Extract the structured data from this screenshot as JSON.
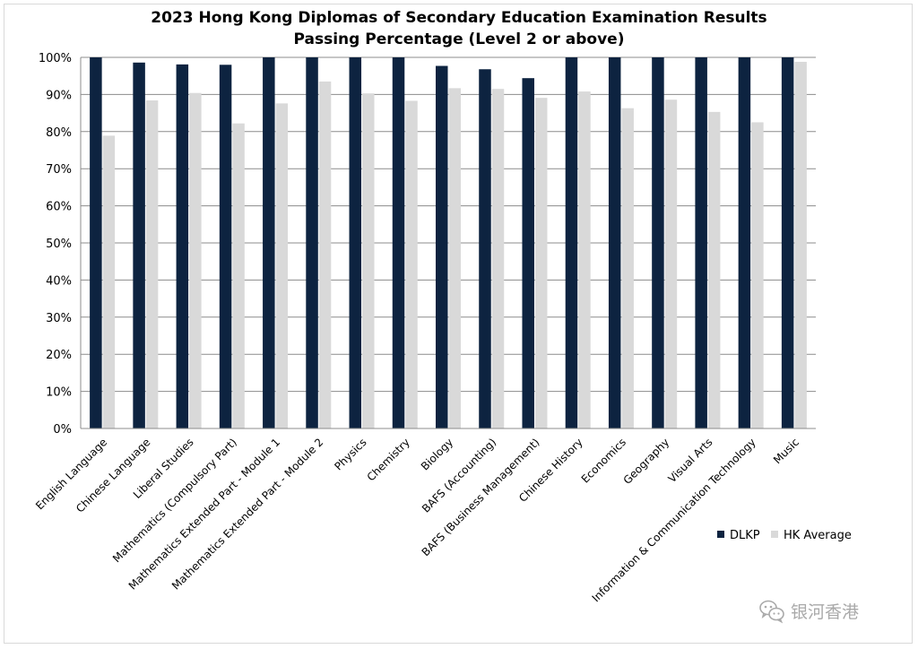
{
  "chart_data": {
    "type": "bar",
    "title": "2023 Hong Kong Diplomas of Secondary Education Examination Results",
    "subtitle": "Passing Percentage (Level 2 or above)",
    "categories": [
      "English Language",
      "Chinese Language",
      "Liberal Studies",
      "Mathematics (Compulsory Part)",
      "Mathematics Extended Part - Module 1",
      "Mathematics Extended Part - Module 2",
      "Physics",
      "Chemistry",
      "Biology",
      "BAFS (Accounting)",
      "BAFS (Business Management)",
      "Chinese History",
      "Economics",
      "Geography",
      "Visual Arts",
      "Information & Communication Technology",
      "Music"
    ],
    "series": [
      {
        "name": "DLKP",
        "color": "#0d2340",
        "values": [
          100,
          98.6,
          98.1,
          98.0,
          100,
          100,
          100,
          100,
          97.7,
          96.8,
          94.4,
          100,
          100,
          100,
          100,
          100,
          100
        ]
      },
      {
        "name": "HK Average",
        "color": "#d9d9d9",
        "values": [
          78.9,
          88.4,
          90.4,
          82.2,
          87.6,
          93.5,
          90.3,
          88.3,
          91.7,
          91.5,
          89.1,
          90.8,
          86.3,
          88.6,
          85.3,
          82.5,
          98.8
        ]
      }
    ],
    "ylim": [
      0,
      100
    ],
    "yticks": [
      0,
      10,
      20,
      30,
      40,
      50,
      60,
      70,
      80,
      90,
      100
    ],
    "ytick_labels": [
      "0%",
      "10%",
      "20%",
      "30%",
      "40%",
      "50%",
      "60%",
      "70%",
      "80%",
      "90%",
      "100%"
    ],
    "xlabel": "",
    "ylabel": "",
    "grid": true,
    "legend_position": "bottom-right"
  },
  "watermark": {
    "text": "银河香港",
    "icon": "wechat-icon"
  }
}
